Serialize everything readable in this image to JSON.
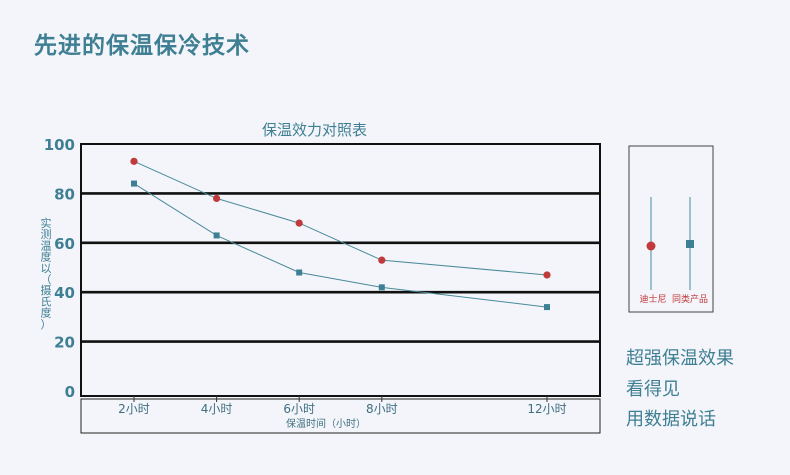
{
  "page": {
    "title": "先进的保温保冷技术",
    "tagline": [
      "超强保温效果",
      "看得见",
      "用数据说话"
    ]
  },
  "colors": {
    "accent": "#3f7f93",
    "line": "#4a8a99",
    "disney": "#c0393b",
    "other": "#3d8095"
  },
  "chart_data": {
    "type": "line",
    "title": "保温效力对照表",
    "xlabel": "保温时间（小时）",
    "ylabel": "实测温度以（摄氏度）",
    "categories": [
      "2小时",
      "4小时",
      "6小时",
      "8小时",
      "12小时"
    ],
    "x": [
      2,
      4,
      6,
      8,
      12
    ],
    "ylim": [
      0,
      100
    ],
    "yticks": [
      0,
      20,
      40,
      60,
      80,
      100
    ],
    "grid": true,
    "legend_position": "right",
    "series": [
      {
        "name": "迪士尼",
        "marker": "circle",
        "color": "#c0393b",
        "values": [
          95,
          80,
          70,
          55,
          49
        ]
      },
      {
        "name": "同类产品",
        "marker": "square",
        "color": "#3d8095",
        "values": [
          86,
          65,
          50,
          44,
          36
        ]
      }
    ]
  }
}
